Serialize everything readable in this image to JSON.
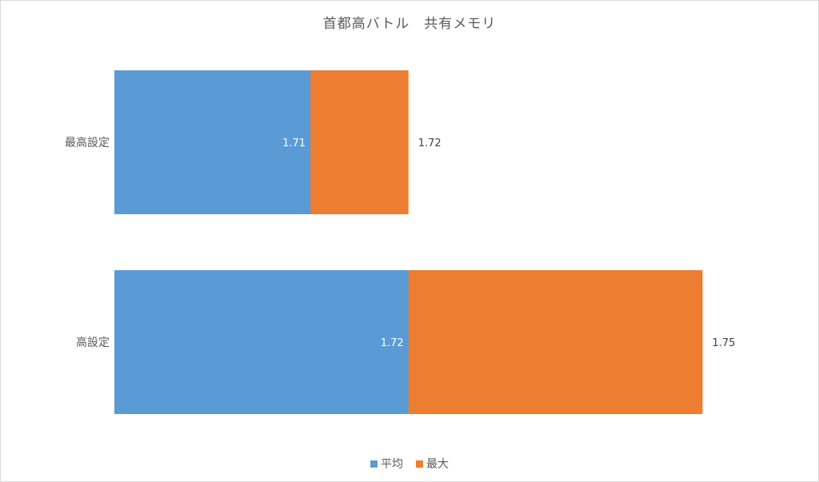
{
  "chart_data": {
    "type": "bar",
    "orientation": "horizontal",
    "stacked": false,
    "title": "首都高バトル　共有メモリ",
    "categories": [
      "最高設定",
      "高設定"
    ],
    "series": [
      {
        "name": "平均",
        "color": "#5b9bd5",
        "values": [
          1.71,
          1.72
        ],
        "labels": [
          "1.71",
          "1.72"
        ]
      },
      {
        "name": "最大",
        "color": "#ed7d31",
        "values": [
          1.72,
          1.75
        ],
        "labels": [
          "1.72",
          "1.75"
        ]
      }
    ],
    "xlim": [
      1.69,
      1.76
    ],
    "grid": false,
    "legend_position": "bottom"
  }
}
